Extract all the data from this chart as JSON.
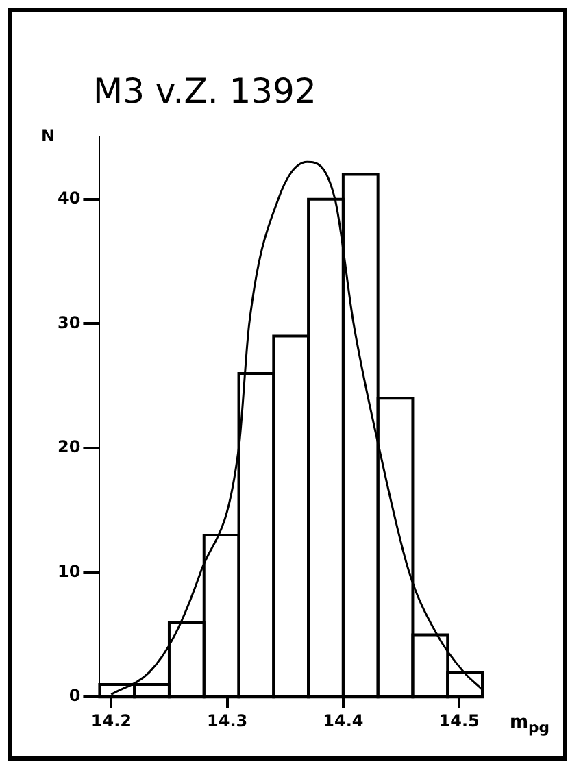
{
  "chart_data": {
    "type": "histogram",
    "title": "M3   v.Z. 1392",
    "xlabel": "m$_{pg}$",
    "ylabel": "N",
    "bins": [
      14.19,
      14.22,
      14.25,
      14.28,
      14.31,
      14.34,
      14.37,
      14.4,
      14.43,
      14.46,
      14.49,
      14.52
    ],
    "values": [
      1,
      1,
      6,
      13,
      26,
      29,
      40,
      42,
      24,
      5,
      2
    ],
    "color": "#000000",
    "series": [
      {
        "type": "line",
        "color": "#000000",
        "x": [
          14.2,
          14.233,
          14.255,
          14.277,
          14.31,
          14.319,
          14.344,
          14.369,
          14.393,
          14.409,
          14.431,
          14.457,
          14.481,
          14.504,
          14.52
        ],
        "values": [
          0.2,
          2,
          5,
          10,
          20,
          30,
          40,
          43,
          40,
          30,
          20,
          10,
          5,
          2,
          0.6
        ]
      }
    ],
    "xlim": [
      14.19,
      14.52
    ],
    "xticks": [
      14.2,
      14.3,
      14.4,
      14.5
    ],
    "ylim": [
      0,
      45
    ],
    "yticks": [
      0,
      10,
      20,
      30,
      40
    ]
  }
}
